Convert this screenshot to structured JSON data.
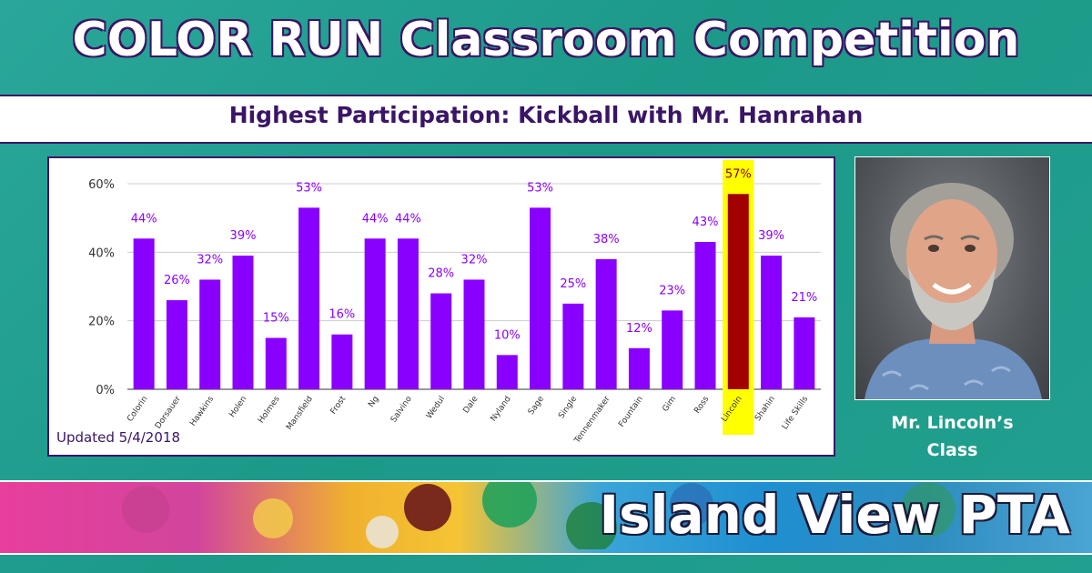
{
  "header": {
    "title": "COLOR RUN Classroom Competition",
    "subtitle": "Highest Participation: Kickball with Mr. Hanrahan"
  },
  "chart_data": {
    "type": "bar",
    "categories": [
      "Colorin",
      "Dorsauer",
      "Hawkins",
      "Holen",
      "Holmes",
      "Mansfield",
      "Frost",
      "Ng",
      "Salvino",
      "Wedul",
      "Dale",
      "Nyland",
      "Sage",
      "Single",
      "Tennenmaker",
      "Fountain",
      "Gim",
      "Ross",
      "Lincoln",
      "Shahin",
      "Life Skills"
    ],
    "values": [
      44,
      26,
      32,
      39,
      15,
      53,
      16,
      44,
      44,
      28,
      32,
      10,
      53,
      25,
      38,
      12,
      23,
      43,
      57,
      39,
      21
    ],
    "value_labels": [
      "44%",
      "26%",
      "32%",
      "39%",
      "15%",
      "53%",
      "16%",
      "44%",
      "44%",
      "28%",
      "32%",
      "10%",
      "53%",
      "25%",
      "38%",
      "12%",
      "23%",
      "43%",
      "57%",
      "39%",
      "21%"
    ],
    "y_ticks": [
      "0%",
      "20%",
      "40%",
      "60%"
    ],
    "ylim": [
      0,
      60
    ],
    "grid": true,
    "highlight_index": 18,
    "colors": {
      "bar": "#8a00ff",
      "highlight_bar": "#a30000",
      "highlight_box": "#ffff00",
      "label": "#8a00ff",
      "highlight_label": "#8a0000"
    }
  },
  "updated": "Updated 5/4/2018",
  "photo": {
    "caption_line1": "Mr. Lincoln’s",
    "caption_line2": "Class"
  },
  "banner": {
    "text": "Island View PTA"
  }
}
